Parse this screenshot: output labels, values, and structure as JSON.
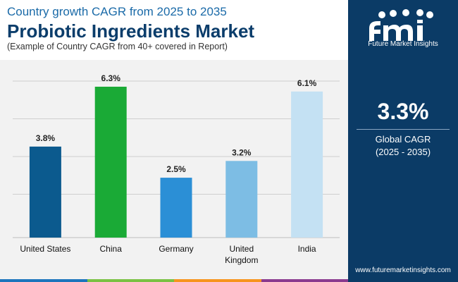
{
  "header": {
    "subtitle": "Country growth CAGR from 2025 to 2035",
    "title": "Probiotic Ingredients Market",
    "note": "(Example of Country CAGR from 40+ covered in Report)"
  },
  "sidebar": {
    "logo_text": "Future Market Insights",
    "kpi_value": "3.3%",
    "kpi_label": "Global CAGR",
    "kpi_period": "(2025 - 2035)",
    "website": "www.futuremarketinsights.com"
  },
  "colors": {
    "navy": "#0b3b66",
    "strip": [
      "#1c75bc",
      "#7ac143",
      "#f7941d",
      "#8b3a8f"
    ]
  },
  "chart_data": {
    "type": "bar",
    "categories": [
      "United States",
      "China",
      "Germany",
      "United\nKingdom",
      "India"
    ],
    "values": [
      3.8,
      6.3,
      2.5,
      3.2,
      6.1
    ],
    "data_labels": [
      "3.8%",
      "6.3%",
      "2.5%",
      "3.2%",
      "6.1%"
    ],
    "colors": [
      "#0b5a8e",
      "#1aaa36",
      "#2b8fd6",
      "#7dbde4",
      "#c4e1f3"
    ],
    "ylim": [
      0,
      6.3
    ],
    "grid": true,
    "title": "",
    "xlabel": "",
    "ylabel": ""
  }
}
